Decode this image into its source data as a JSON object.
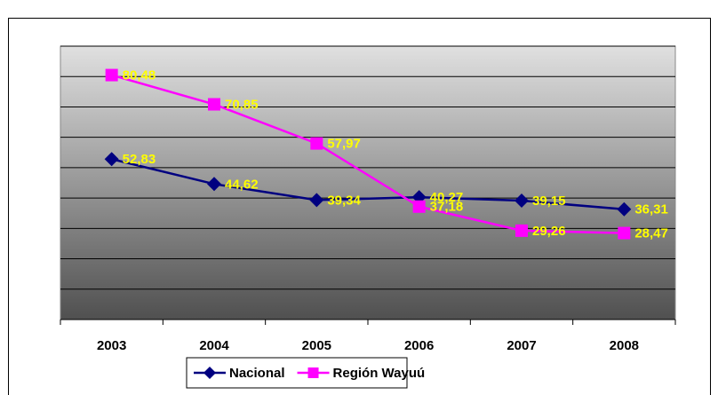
{
  "chart_data": {
    "type": "line",
    "categories": [
      "2003",
      "2004",
      "2005",
      "2006",
      "2007",
      "2008"
    ],
    "series": [
      {
        "name": "Nacional",
        "color": "#000080",
        "marker": "diamond",
        "values": [
          52.83,
          44.62,
          39.34,
          40.27,
          39.15,
          36.31
        ],
        "value_labels": [
          "52,83",
          "44,62",
          "39,34",
          "40,27",
          "39,15",
          "36,31"
        ]
      },
      {
        "name": "Región Wayuú",
        "color": "#ff00ff",
        "marker": "square",
        "values": [
          80.48,
          70.85,
          57.97,
          37.18,
          29.26,
          28.47
        ],
        "value_labels": [
          "80,48",
          "70,85",
          "57,97",
          "37,18",
          "29,26",
          "28,47"
        ]
      }
    ],
    "ylim": [
      0,
      90
    ],
    "yticks": [
      0,
      10,
      20,
      30,
      40,
      50,
      60,
      70,
      80,
      90
    ],
    "grid": true,
    "label_color": "#ffff00",
    "legend": "bottom"
  }
}
